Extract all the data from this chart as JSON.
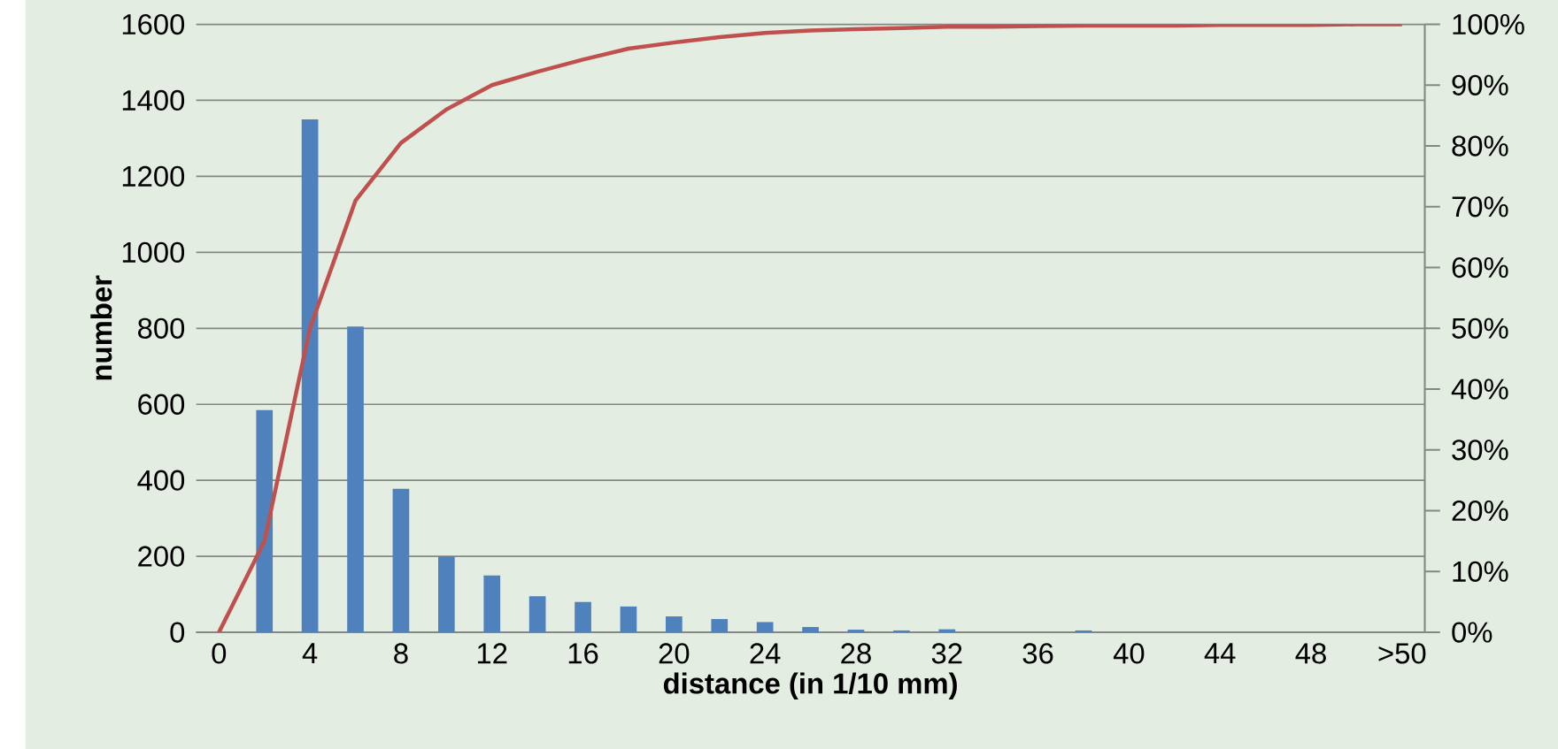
{
  "chart_data": {
    "type": "bar",
    "xlabel": "distance (in 1/10 mm)",
    "ylabel": "number",
    "categories": [
      "0",
      null,
      "4",
      null,
      "8",
      null,
      "12",
      null,
      "16",
      null,
      "20",
      null,
      "24",
      null,
      "28",
      null,
      "32",
      null,
      "36",
      null,
      "40",
      null,
      "44",
      null,
      "48",
      null,
      ">50"
    ],
    "series": [
      {
        "color": "#4f81bd",
        "values": [
          0,
          585,
          1350,
          805,
          378,
          200,
          150,
          95,
          80,
          68,
          42,
          35,
          27,
          14,
          7,
          5,
          8,
          0,
          null,
          5,
          0,
          0,
          0,
          0,
          0,
          0,
          0
        ]
      },
      {
        "type": "line",
        "axis": "y2",
        "color": "#c0504d",
        "values": [
          0,
          15,
          50,
          71,
          80.5,
          86,
          90,
          92.2,
          94.2,
          96,
          97,
          97.9,
          98.6,
          99,
          99.2,
          99.4,
          99.6,
          99.6,
          99.7,
          99.8,
          99.8,
          99.8,
          99.9,
          99.9,
          99.9,
          100,
          100
        ]
      }
    ],
    "ylim": [
      0,
      1600
    ],
    "yticks": [
      0,
      200,
      400,
      600,
      800,
      1000,
      1200,
      1400,
      1600
    ],
    "y2lim": [
      0,
      100
    ],
    "y2ticks": [
      {
        "value": 0,
        "label": "0%"
      },
      {
        "value": 10,
        "label": "10%"
      },
      {
        "value": 20,
        "label": "20%"
      },
      {
        "value": 30,
        "label": "30%"
      },
      {
        "value": 40,
        "label": "40%"
      },
      {
        "value": 50,
        "label": "50%"
      },
      {
        "value": 60,
        "label": "60%"
      },
      {
        "value": 70,
        "label": "70%"
      },
      {
        "value": 80,
        "label": "80%"
      },
      {
        "value": 90,
        "label": "90%"
      },
      {
        "value": 100,
        "label": "100%"
      }
    ],
    "grid": "y"
  }
}
